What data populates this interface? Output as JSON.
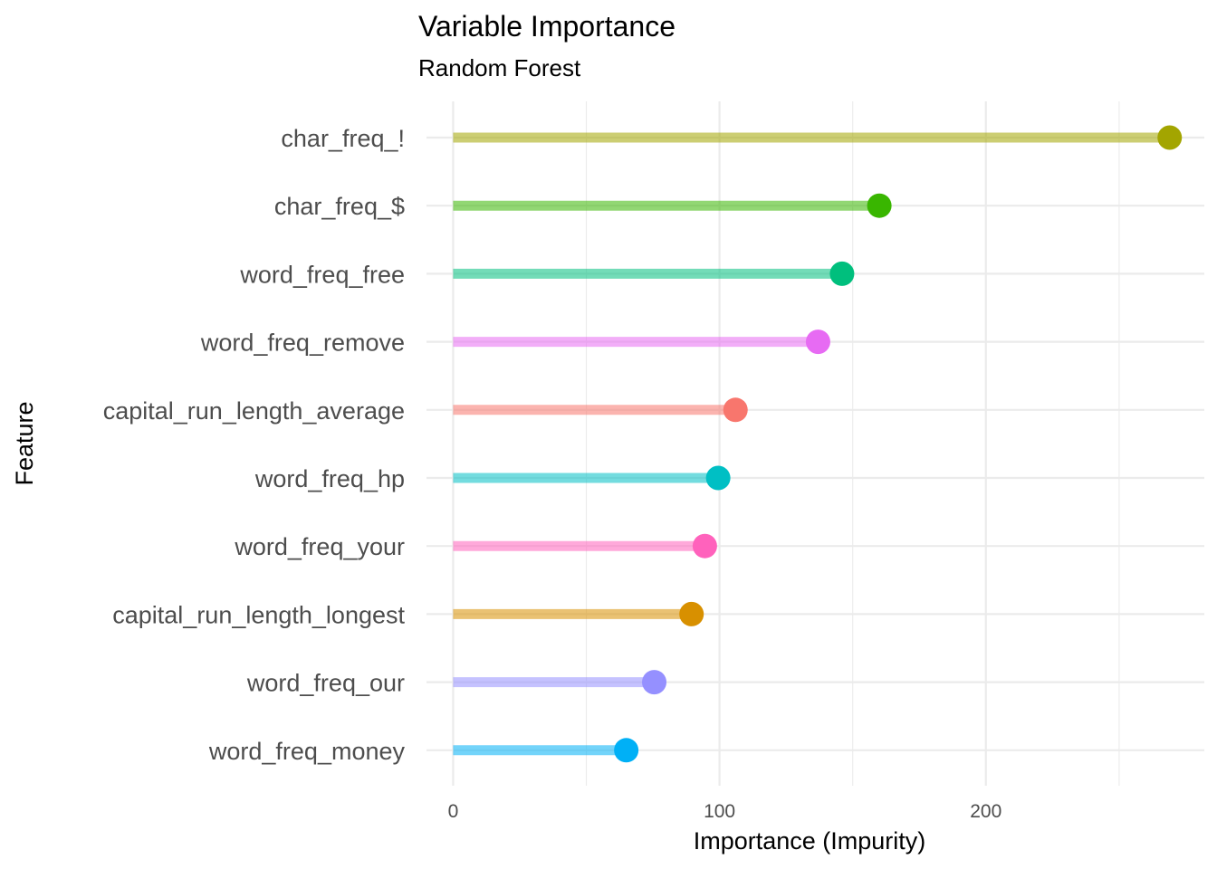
{
  "chart_data": {
    "type": "lollipop",
    "title": "Variable Importance",
    "subtitle": "Random Forest",
    "xlabel": "Importance (Impurity)",
    "ylabel": "Feature",
    "xlim": [
      -10,
      282
    ],
    "xticks": [
      0,
      100,
      200
    ],
    "grid": true,
    "legend": "none",
    "categories": [
      "char_freq_!",
      "char_freq_$",
      "word_freq_free",
      "word_freq_remove",
      "capital_run_length_average",
      "word_freq_hp",
      "word_freq_your",
      "capital_run_length_longest",
      "word_freq_our",
      "word_freq_money"
    ],
    "values": [
      269,
      160,
      146,
      137,
      106,
      99.5,
      94.5,
      89.5,
      75.5,
      65
    ],
    "colors": [
      "#A3A500",
      "#39B600",
      "#00BF7D",
      "#E76BF3",
      "#F8766D",
      "#00BFC4",
      "#FF62BC",
      "#D89000",
      "#9590FF",
      "#00B0F6"
    ]
  }
}
